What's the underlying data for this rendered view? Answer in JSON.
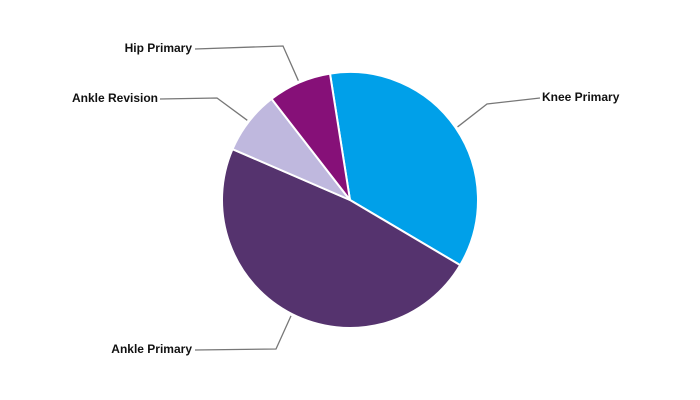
{
  "chart_data": {
    "type": "pie",
    "categories": [
      "Knee Primary",
      "Ankle Primary",
      "Ankle Revision",
      "Hip Primary"
    ],
    "values": [
      36,
      48,
      8,
      8
    ],
    "colors": [
      "#00a0e9",
      "#55336e",
      "#bfb8de",
      "#861078"
    ]
  }
}
